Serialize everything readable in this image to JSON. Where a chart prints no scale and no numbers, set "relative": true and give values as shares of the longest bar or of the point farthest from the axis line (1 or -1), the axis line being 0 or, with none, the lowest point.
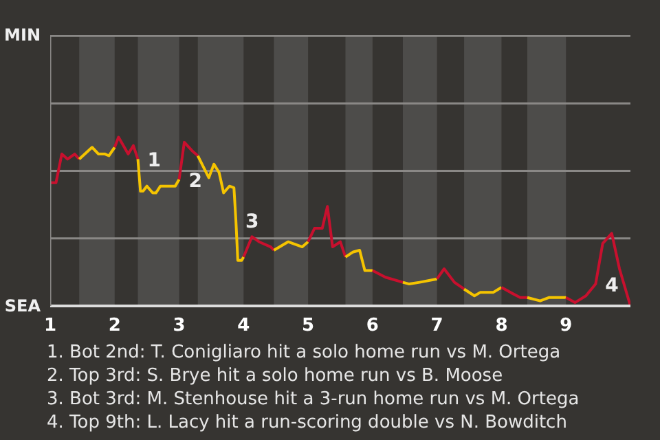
{
  "chart_data": {
    "type": "line",
    "relative": true,
    "xlim": [
      1,
      10
    ],
    "xticks": [
      1,
      2,
      3,
      4,
      5,
      6,
      7,
      8,
      9
    ],
    "marker": "none",
    "line_style": "solid",
    "ref_lines": [
      {
        "axis": "y",
        "value": 0.4,
        "color": "#8a8886"
      },
      {
        "axis": "y",
        "value": 0.8,
        "color": "#8a8886"
      },
      {
        "axis": "y",
        "value": 1.2,
        "color": "#8a8886"
      },
      {
        "axis": "y",
        "value": 1.6,
        "color": "#8a8886"
      }
    ],
    "series": [
      {
        "color": "#c8102e",
        "x": [
          1.0,
          1.09,
          1.18,
          1.27,
          1.38,
          1.45
        ],
        "values": [
          0.73,
          0.73,
          0.9,
          0.87,
          0.9,
          0.87
        ]
      },
      {
        "color": "#f5c400",
        "x": [
          1.45,
          1.65,
          1.75,
          1.85,
          1.91,
          2.0
        ],
        "values": [
          0.87,
          0.94,
          0.9,
          0.9,
          0.89,
          0.94
        ]
      },
      {
        "color": "#c8102e",
        "x": [
          2.0,
          2.06,
          2.21,
          2.29,
          2.36
        ],
        "values": [
          0.94,
          1.0,
          0.9,
          0.95,
          0.87
        ]
      },
      {
        "color": "#f5c400",
        "x": [
          2.36,
          2.4,
          2.44,
          2.5,
          2.59,
          2.64,
          2.71,
          2.94,
          3.0
        ],
        "values": [
          0.87,
          0.68,
          0.68,
          0.71,
          0.67,
          0.67,
          0.71,
          0.71,
          0.75
        ]
      },
      {
        "color": "#c8102e",
        "x": [
          3.0,
          3.08,
          3.2,
          3.29
        ],
        "values": [
          0.75,
          0.97,
          0.92,
          0.89
        ]
      },
      {
        "color": "#f5c400",
        "x": [
          3.29,
          3.46,
          3.54,
          3.62,
          3.69,
          3.78,
          3.85,
          3.88,
          3.91,
          3.97,
          4.0
        ],
        "values": [
          0.89,
          0.76,
          0.84,
          0.79,
          0.67,
          0.71,
          0.7,
          0.51,
          0.27,
          0.27,
          0.29
        ]
      },
      {
        "color": "#c8102e",
        "x": [
          4.0,
          4.13,
          4.24,
          4.42,
          4.47
        ],
        "values": [
          0.29,
          0.41,
          0.38,
          0.35,
          0.33
        ]
      },
      {
        "color": "#f5c400",
        "x": [
          4.47,
          4.69,
          4.91,
          5.0
        ],
        "values": [
          0.33,
          0.38,
          0.35,
          0.38
        ]
      },
      {
        "color": "#c8102e",
        "x": [
          5.0,
          5.1,
          5.22,
          5.3,
          5.38,
          5.5,
          5.58
        ],
        "values": [
          0.38,
          0.46,
          0.46,
          0.59,
          0.35,
          0.38,
          0.29
        ]
      },
      {
        "color": "#f5c400",
        "x": [
          5.58,
          5.7,
          5.8,
          5.88,
          6.0
        ],
        "values": [
          0.29,
          0.32,
          0.33,
          0.21,
          0.21
        ]
      },
      {
        "color": "#c8102e",
        "x": [
          6.0,
          6.2,
          6.47
        ],
        "values": [
          0.21,
          0.17,
          0.14
        ]
      },
      {
        "color": "#f5c400",
        "x": [
          6.47,
          6.57,
          6.73,
          7.0
        ],
        "values": [
          0.14,
          0.13,
          0.14,
          0.16
        ]
      },
      {
        "color": "#c8102e",
        "x": [
          7.0,
          7.11,
          7.27,
          7.42
        ],
        "values": [
          0.16,
          0.22,
          0.14,
          0.1
        ]
      },
      {
        "color": "#f5c400",
        "x": [
          7.42,
          7.58,
          7.67,
          7.87,
          8.0
        ],
        "values": [
          0.1,
          0.06,
          0.08,
          0.08,
          0.11
        ]
      },
      {
        "color": "#c8102e",
        "x": [
          8.0,
          8.14,
          8.29,
          8.4
        ],
        "values": [
          0.11,
          0.08,
          0.05,
          0.05
        ]
      },
      {
        "color": "#f5c400",
        "x": [
          8.4,
          8.6,
          8.74,
          8.89,
          9.0
        ],
        "values": [
          0.05,
          0.03,
          0.05,
          0.05,
          0.05
        ]
      },
      {
        "color": "#c8102e",
        "x": [
          9.0,
          9.14,
          9.31,
          9.46,
          9.57,
          9.71,
          9.83,
          10.0
        ],
        "values": [
          0.05,
          0.02,
          0.06,
          0.13,
          0.37,
          0.43,
          0.22,
          0
        ]
      }
    ],
    "bands": [
      {
        "axis": "x",
        "from": 1.45,
        "to": 2.0,
        "color": "#4d4c4a"
      },
      {
        "axis": "x",
        "from": 2.36,
        "to": 3.0,
        "color": "#4d4c4a"
      },
      {
        "axis": "x",
        "from": 3.29,
        "to": 4.0,
        "color": "#4d4c4a"
      },
      {
        "axis": "x",
        "from": 4.47,
        "to": 5.0,
        "color": "#4d4c4a"
      },
      {
        "axis": "x",
        "from": 5.58,
        "to": 6.0,
        "color": "#4d4c4a"
      },
      {
        "axis": "x",
        "from": 6.47,
        "to": 7.0,
        "color": "#4d4c4a"
      },
      {
        "axis": "x",
        "from": 7.42,
        "to": 8.0,
        "color": "#4d4c4a"
      },
      {
        "axis": "x",
        "from": 8.4,
        "to": 9.0,
        "color": "#4d4c4a"
      }
    ],
    "annotations": [
      "MIN",
      "SEA",
      {
        "text": "1",
        "x": 2.36,
        "y": 0.87
      },
      {
        "text": "2",
        "x": 3.0,
        "y": 0.75
      },
      {
        "text": "3",
        "x": 3.88,
        "y": 0.51
      },
      {
        "text": "4",
        "x": 9.46,
        "y": 0.13
      },
      "1. Bot 2nd: T. Conigliaro hit a solo home run vs M. Ortega",
      "2. Top 3rd: S. Brye hit a solo home run vs B. Moose",
      "3. Bot 3rd: M. Stenhouse hit a 3-run home run vs M. Ortega",
      "4. Top 9th: L. Lacy hit a run-scoring double vs N. Bowditch"
    ]
  }
}
